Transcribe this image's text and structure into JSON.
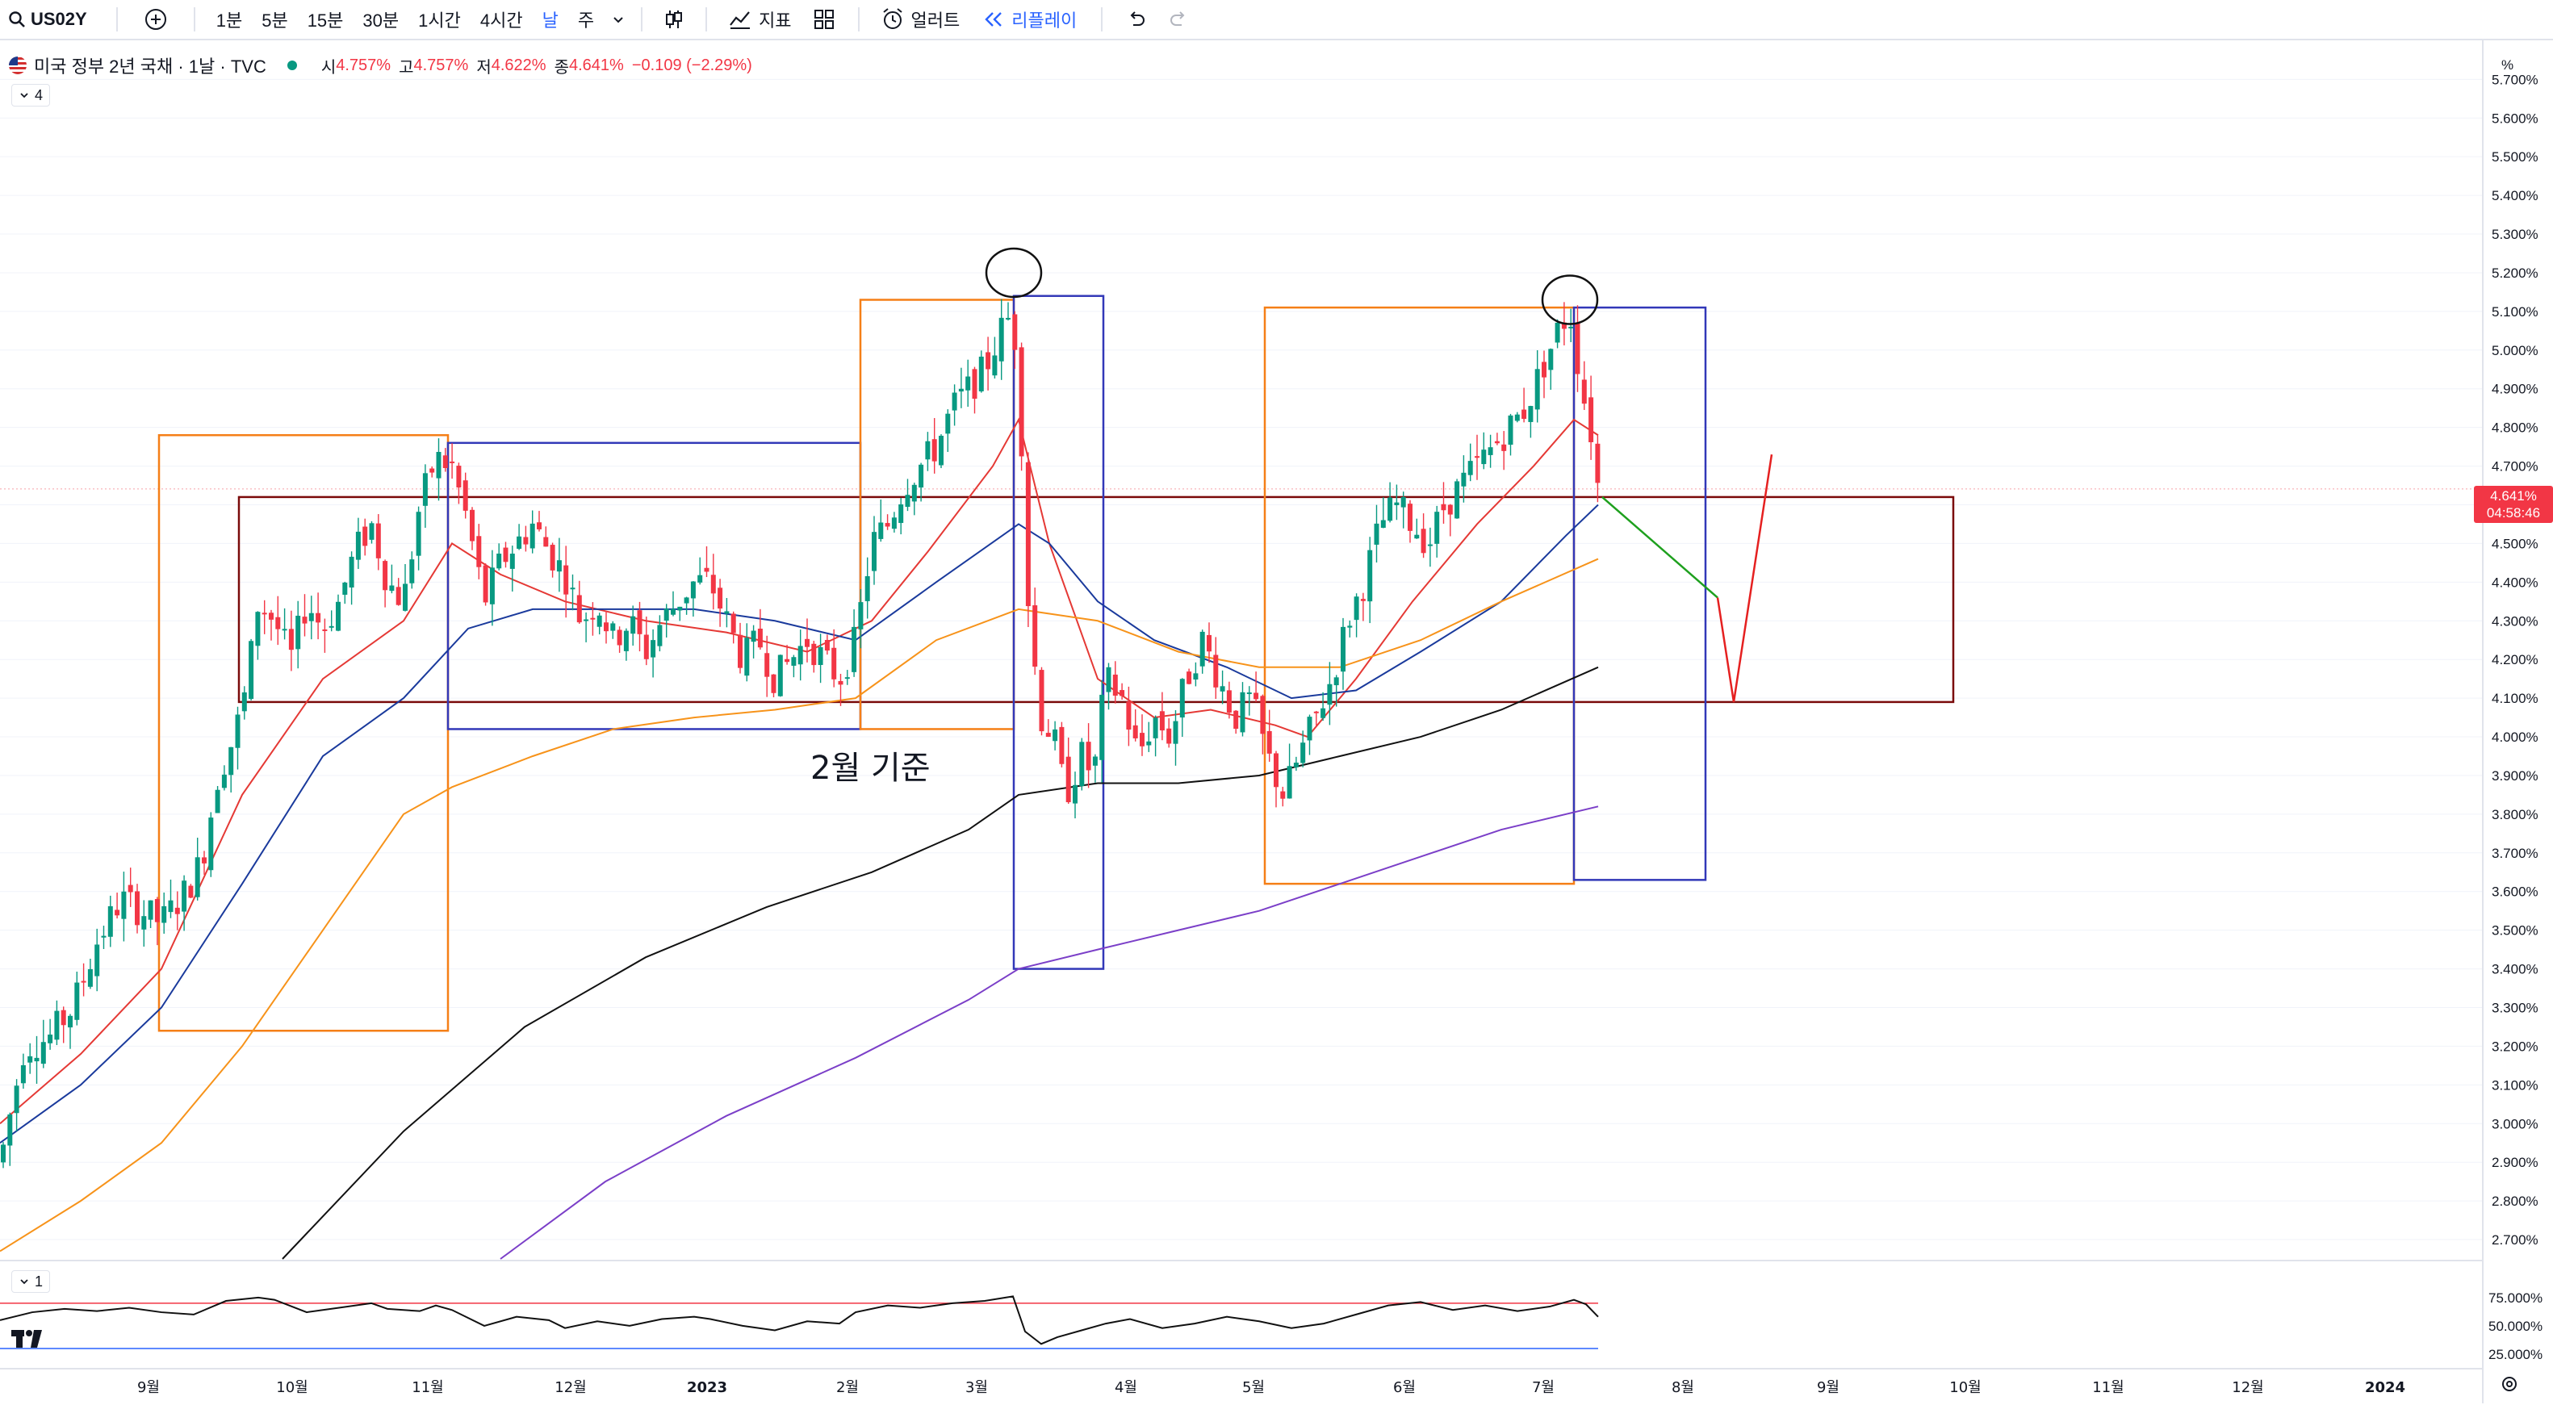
{
  "toolbar": {
    "symbol": "US02Y",
    "intervals": [
      "1분",
      "5분",
      "15분",
      "30분",
      "1시간",
      "4시간",
      "날",
      "주"
    ],
    "active_interval": "날",
    "indicators_label": "지표",
    "alert_label": "얼러트",
    "replay_label": "리플레이"
  },
  "legend": {
    "title": "미국 정부 2년 국채 · 1날 · TVC",
    "open_label": "시",
    "open": "4.757%",
    "high_label": "고",
    "high": "4.757%",
    "low_label": "저",
    "low": "4.622%",
    "close_label": "종",
    "close": "4.641%",
    "change": "−0.109 (−2.29%)",
    "indicator_count": "4"
  },
  "oscillator": {
    "pane_count": "1"
  },
  "price_tag": {
    "value": "4.641%",
    "countdown": "04:58:46"
  },
  "colors": {
    "up": "#089981",
    "down": "#f23645",
    "ma_fast": "#e53935",
    "ma_mid": "#1a3a9c",
    "ma_slow": "#f7931a",
    "ma_long": "#111111",
    "ma_xlong": "#7b3fc8",
    "box_orange": "#f57f17",
    "box_blue": "#3238b8",
    "zone": "#7a0a0a"
  },
  "annotation_text": "2월 기준",
  "chart_data": {
    "type": "candlestick",
    "title": "미국 정부 2년 국채 · 1날 · TVC",
    "y_unit": "%",
    "y_range": [
      2.65,
      5.78
    ],
    "y_ticks": [
      "5.700%",
      "5.600%",
      "5.500%",
      "5.400%",
      "5.300%",
      "5.200%",
      "5.100%",
      "5.000%",
      "4.900%",
      "4.800%",
      "4.700%",
      "4.600%",
      "4.500%",
      "4.400%",
      "4.300%",
      "4.200%",
      "4.100%",
      "4.000%",
      "3.900%",
      "3.800%",
      "3.700%",
      "3.600%",
      "3.500%",
      "3.400%",
      "3.300%",
      "3.200%",
      "3.100%",
      "3.000%",
      "2.900%",
      "2.800%",
      "2.700%"
    ],
    "x_ticks": [
      "9월",
      "10월",
      "11월",
      "12월",
      "2023",
      "2월",
      "3월",
      "4월",
      "5월",
      "6월",
      "7월",
      "8월",
      "9월",
      "10월",
      "11월",
      "12월",
      "2024"
    ],
    "price_path": [
      [
        0,
        2.9
      ],
      [
        30,
        3.2
      ],
      [
        60,
        3.22
      ],
      [
        90,
        3.3
      ],
      [
        120,
        3.47
      ],
      [
        150,
        3.58
      ],
      [
        175,
        3.55
      ],
      [
        200,
        3.52
      ],
      [
        230,
        3.6
      ],
      [
        250,
        3.68
      ],
      [
        270,
        3.9
      ],
      [
        290,
        4.0
      ],
      [
        305,
        4.12
      ],
      [
        320,
        4.35
      ],
      [
        340,
        4.3
      ],
      [
        360,
        4.2
      ],
      [
        380,
        4.35
      ],
      [
        400,
        4.28
      ],
      [
        420,
        4.35
      ],
      [
        440,
        4.48
      ],
      [
        460,
        4.55
      ],
      [
        480,
        4.4
      ],
      [
        500,
        4.35
      ],
      [
        520,
        4.6
      ],
      [
        540,
        4.72
      ],
      [
        560,
        4.7
      ],
      [
        580,
        4.55
      ],
      [
        600,
        4.35
      ],
      [
        620,
        4.45
      ],
      [
        640,
        4.5
      ],
      [
        660,
        4.55
      ],
      [
        680,
        4.48
      ],
      [
        700,
        4.42
      ],
      [
        720,
        4.3
      ],
      [
        740,
        4.35
      ],
      [
        760,
        4.25
      ],
      [
        780,
        4.3
      ],
      [
        800,
        4.22
      ],
      [
        820,
        4.3
      ],
      [
        840,
        4.35
      ],
      [
        860,
        4.4
      ],
      [
        880,
        4.4
      ],
      [
        900,
        4.3
      ],
      [
        920,
        4.2
      ],
      [
        940,
        4.25
      ],
      [
        960,
        4.15
      ],
      [
        980,
        4.2
      ],
      [
        1000,
        4.25
      ],
      [
        1020,
        4.2
      ],
      [
        1040,
        4.15
      ],
      [
        1060,
        4.25
      ],
      [
        1080,
        4.5
      ],
      [
        1100,
        4.55
      ],
      [
        1120,
        4.65
      ],
      [
        1140,
        4.7
      ],
      [
        1160,
        4.75
      ],
      [
        1180,
        4.85
      ],
      [
        1200,
        4.9
      ],
      [
        1220,
        4.95
      ],
      [
        1240,
        5.05
      ],
      [
        1255,
        5.1
      ],
      [
        1265,
        4.8
      ],
      [
        1275,
        4.3
      ],
      [
        1290,
        4.05
      ],
      [
        1305,
        4.0
      ],
      [
        1320,
        3.85
      ],
      [
        1340,
        3.95
      ],
      [
        1355,
        3.9
      ],
      [
        1370,
        4.15
      ],
      [
        1390,
        4.1
      ],
      [
        1410,
        3.95
      ],
      [
        1430,
        4.05
      ],
      [
        1450,
        4.0
      ],
      [
        1470,
        4.15
      ],
      [
        1490,
        4.25
      ],
      [
        1510,
        4.15
      ],
      [
        1530,
        4.05
      ],
      [
        1550,
        4.1
      ],
      [
        1570,
        3.95
      ],
      [
        1590,
        3.85
      ],
      [
        1610,
        3.95
      ],
      [
        1630,
        4.05
      ],
      [
        1650,
        4.15
      ],
      [
        1670,
        4.3
      ],
      [
        1690,
        4.4
      ],
      [
        1710,
        4.55
      ],
      [
        1730,
        4.6
      ],
      [
        1750,
        4.55
      ],
      [
        1770,
        4.5
      ],
      [
        1790,
        4.6
      ],
      [
        1810,
        4.65
      ],
      [
        1830,
        4.7
      ],
      [
        1850,
        4.75
      ],
      [
        1870,
        4.8
      ],
      [
        1890,
        4.85
      ],
      [
        1910,
        4.95
      ],
      [
        1930,
        5.05
      ],
      [
        1945,
        5.1
      ],
      [
        1960,
        4.9
      ],
      [
        1975,
        4.75
      ],
      [
        1980,
        4.64
      ]
    ],
    "moving_averages": [
      {
        "color": "#e53935",
        "points": [
          [
            0,
            3.0
          ],
          [
            100,
            3.18
          ],
          [
            200,
            3.4
          ],
          [
            300,
            3.85
          ],
          [
            400,
            4.15
          ],
          [
            500,
            4.3
          ],
          [
            560,
            4.5
          ],
          [
            620,
            4.42
          ],
          [
            700,
            4.35
          ],
          [
            800,
            4.3
          ],
          [
            900,
            4.27
          ],
          [
            1000,
            4.22
          ],
          [
            1080,
            4.3
          ],
          [
            1150,
            4.48
          ],
          [
            1230,
            4.7
          ],
          [
            1262,
            4.82
          ],
          [
            1300,
            4.5
          ],
          [
            1360,
            4.15
          ],
          [
            1430,
            4.05
          ],
          [
            1500,
            4.07
          ],
          [
            1580,
            4.03
          ],
          [
            1620,
            4.0
          ],
          [
            1680,
            4.15
          ],
          [
            1750,
            4.35
          ],
          [
            1830,
            4.55
          ],
          [
            1900,
            4.7
          ],
          [
            1950,
            4.82
          ],
          [
            1980,
            4.78
          ]
        ]
      },
      {
        "color": "#1a3a9c",
        "points": [
          [
            0,
            2.95
          ],
          [
            100,
            3.1
          ],
          [
            200,
            3.3
          ],
          [
            300,
            3.62
          ],
          [
            400,
            3.95
          ],
          [
            500,
            4.1
          ],
          [
            580,
            4.28
          ],
          [
            660,
            4.33
          ],
          [
            760,
            4.33
          ],
          [
            860,
            4.33
          ],
          [
            960,
            4.3
          ],
          [
            1060,
            4.25
          ],
          [
            1160,
            4.4
          ],
          [
            1262,
            4.55
          ],
          [
            1300,
            4.5
          ],
          [
            1360,
            4.35
          ],
          [
            1430,
            4.25
          ],
          [
            1520,
            4.18
          ],
          [
            1600,
            4.1
          ],
          [
            1680,
            4.12
          ],
          [
            1760,
            4.22
          ],
          [
            1860,
            4.35
          ],
          [
            1940,
            4.52
          ],
          [
            1980,
            4.6
          ]
        ]
      },
      {
        "color": "#f7931a",
        "points": [
          [
            0,
            2.67
          ],
          [
            100,
            2.8
          ],
          [
            200,
            2.95
          ],
          [
            300,
            3.2
          ],
          [
            400,
            3.5
          ],
          [
            500,
            3.8
          ],
          [
            560,
            3.87
          ],
          [
            660,
            3.95
          ],
          [
            760,
            4.02
          ],
          [
            860,
            4.05
          ],
          [
            960,
            4.07
          ],
          [
            1060,
            4.1
          ],
          [
            1160,
            4.25
          ],
          [
            1262,
            4.33
          ],
          [
            1360,
            4.3
          ],
          [
            1460,
            4.22
          ],
          [
            1560,
            4.18
          ],
          [
            1660,
            4.18
          ],
          [
            1760,
            4.25
          ],
          [
            1860,
            4.35
          ],
          [
            1980,
            4.46
          ]
        ]
      },
      {
        "color": "#111111",
        "points": [
          [
            350,
            2.65
          ],
          [
            500,
            2.98
          ],
          [
            650,
            3.25
          ],
          [
            800,
            3.43
          ],
          [
            950,
            3.56
          ],
          [
            1080,
            3.65
          ],
          [
            1200,
            3.76
          ],
          [
            1262,
            3.85
          ],
          [
            1360,
            3.88
          ],
          [
            1460,
            3.88
          ],
          [
            1560,
            3.9
          ],
          [
            1660,
            3.95
          ],
          [
            1760,
            4.0
          ],
          [
            1860,
            4.07
          ],
          [
            1980,
            4.18
          ]
        ]
      },
      {
        "color": "#7b3fc8",
        "points": [
          [
            620,
            2.65
          ],
          [
            750,
            2.85
          ],
          [
            900,
            3.02
          ],
          [
            1060,
            3.17
          ],
          [
            1200,
            3.32
          ],
          [
            1262,
            3.4
          ],
          [
            1360,
            3.45
          ],
          [
            1460,
            3.5
          ],
          [
            1560,
            3.55
          ],
          [
            1660,
            3.62
          ],
          [
            1760,
            3.69
          ],
          [
            1860,
            3.76
          ],
          [
            1980,
            3.82
          ]
        ]
      }
    ],
    "boxes": [
      {
        "color": "#f57f17",
        "x1": 197,
        "x2": 555,
        "y_top": 4.78,
        "y_bottom": 3.24
      },
      {
        "color": "#3238b8",
        "x1": 555,
        "x2": 1066,
        "y_top": 4.76,
        "y_bottom": 4.02
      },
      {
        "color": "#f57f17",
        "x1": 1066,
        "x2": 1256,
        "y_top": 5.13,
        "y_bottom": 4.02
      },
      {
        "color": "#3238b8",
        "x1": 1256,
        "x2": 1367,
        "y_top": 5.14,
        "y_bottom": 3.4
      },
      {
        "color": "#f57f17",
        "x1": 1567,
        "x2": 1950,
        "y_top": 5.11,
        "y_bottom": 3.62
      },
      {
        "color": "#3238b8",
        "x1": 1950,
        "x2": 2113,
        "y_top": 5.11,
        "y_bottom": 3.63
      }
    ],
    "zone": {
      "color": "#7a0a0a",
      "x1": 296,
      "x2": 2420,
      "y_top": 4.62,
      "y_bottom": 4.09
    },
    "circles": [
      {
        "x": 1256,
        "y": 5.2
      },
      {
        "x": 1945,
        "y": 5.13
      }
    ],
    "projection_green": [
      [
        1985,
        4.62
      ],
      [
        2128,
        4.36
      ]
    ],
    "projection_red": [
      [
        2128,
        4.36
      ],
      [
        2148,
        4.09
      ],
      [
        2195,
        4.73
      ]
    ],
    "oscillator": {
      "levels": [
        "75.000%",
        "50.000%",
        "25.000%"
      ],
      "path": [
        [
          0,
          55
        ],
        [
          40,
          62
        ],
        [
          80,
          65
        ],
        [
          120,
          63
        ],
        [
          160,
          66
        ],
        [
          200,
          62
        ],
        [
          240,
          60
        ],
        [
          280,
          72
        ],
        [
          320,
          75
        ],
        [
          340,
          73
        ],
        [
          380,
          62
        ],
        [
          420,
          66
        ],
        [
          460,
          70
        ],
        [
          480,
          65
        ],
        [
          520,
          63
        ],
        [
          540,
          68
        ],
        [
          560,
          64
        ],
        [
          600,
          50
        ],
        [
          640,
          58
        ],
        [
          680,
          55
        ],
        [
          700,
          48
        ],
        [
          740,
          54
        ],
        [
          780,
          50
        ],
        [
          820,
          56
        ],
        [
          860,
          58
        ],
        [
          880,
          56
        ],
        [
          920,
          50
        ],
        [
          960,
          46
        ],
        [
          1000,
          54
        ],
        [
          1040,
          52
        ],
        [
          1060,
          62
        ],
        [
          1100,
          68
        ],
        [
          1140,
          66
        ],
        [
          1180,
          70
        ],
        [
          1220,
          72
        ],
        [
          1255,
          76
        ],
        [
          1270,
          45
        ],
        [
          1290,
          34
        ],
        [
          1310,
          40
        ],
        [
          1340,
          46
        ],
        [
          1370,
          52
        ],
        [
          1400,
          56
        ],
        [
          1440,
          48
        ],
        [
          1480,
          52
        ],
        [
          1520,
          58
        ],
        [
          1560,
          54
        ],
        [
          1600,
          48
        ],
        [
          1640,
          52
        ],
        [
          1680,
          60
        ],
        [
          1720,
          68
        ],
        [
          1760,
          71
        ],
        [
          1800,
          64
        ],
        [
          1840,
          68
        ],
        [
          1880,
          63
        ],
        [
          1920,
          67
        ],
        [
          1950,
          73
        ],
        [
          1965,
          69
        ],
        [
          1980,
          58
        ]
      ]
    }
  }
}
